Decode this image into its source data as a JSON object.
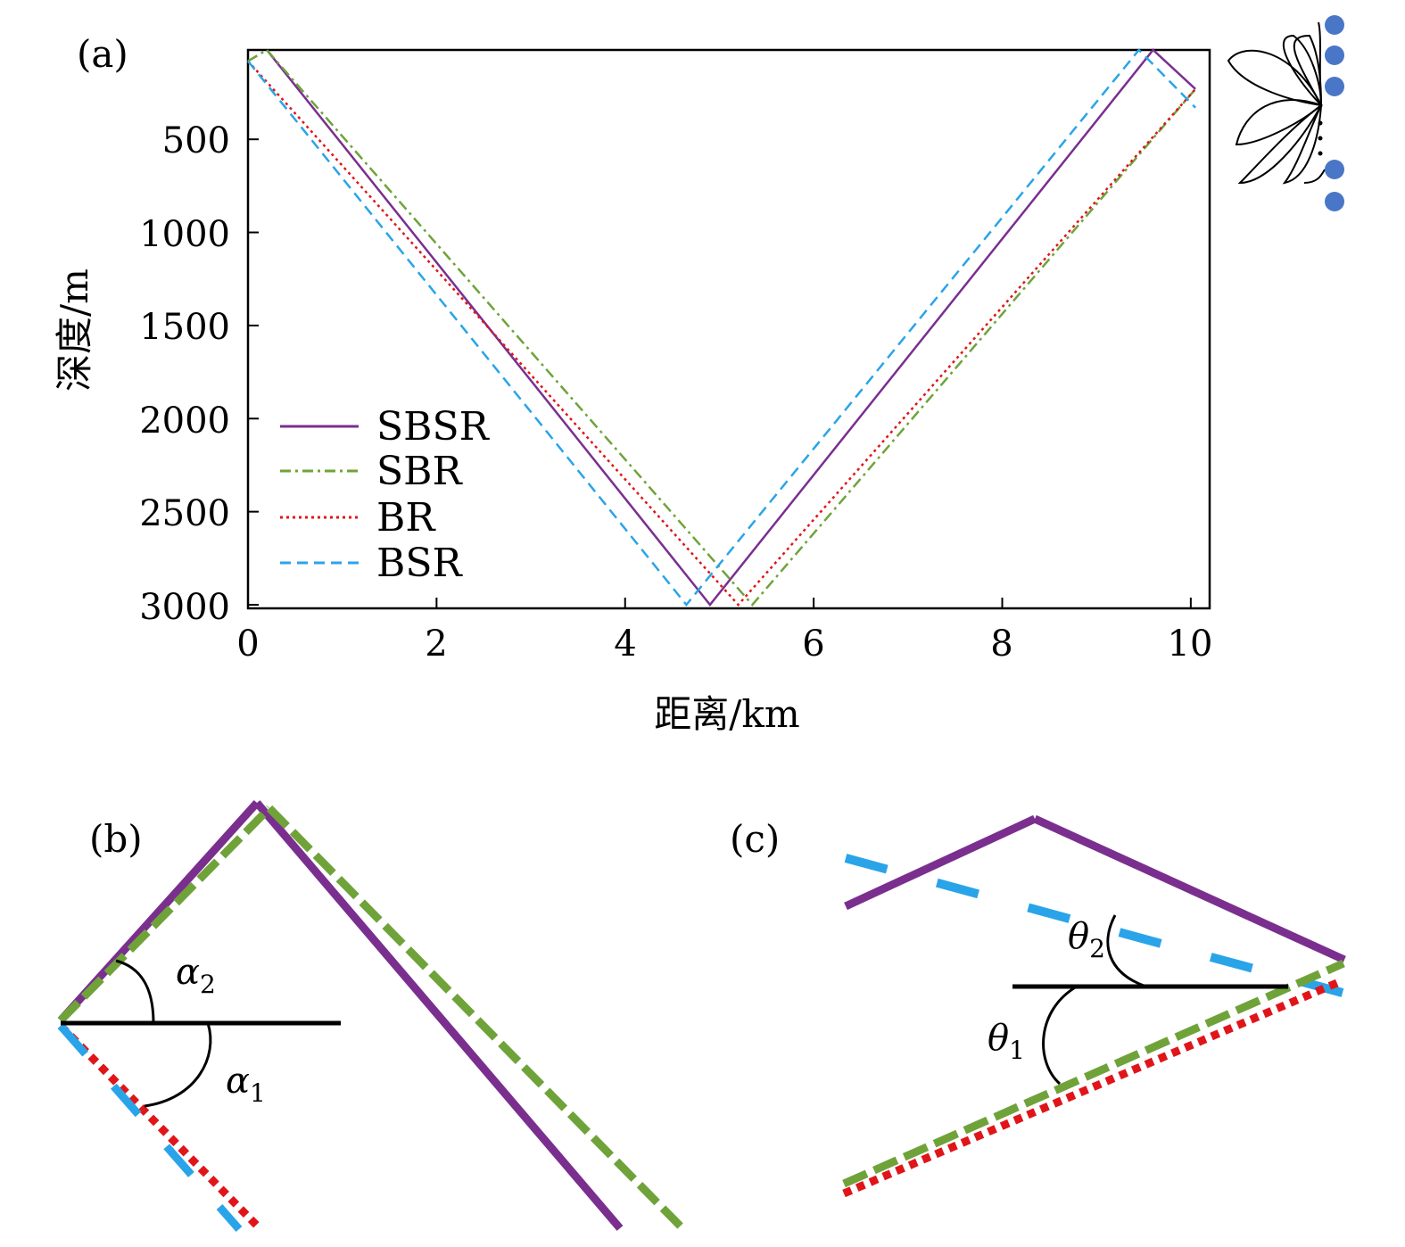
{
  "colors": {
    "SBSR": "#7a2f8f",
    "SBR": "#6fa33a",
    "BR": "#e0151a",
    "BSR": "#2aa4e8",
    "receiver": "#4a76c8"
  },
  "chart_data": [
    {
      "panel": "(a)",
      "type": "line",
      "xlabel": "距离/km",
      "ylabel": "深度/m",
      "xlim": [
        0,
        10.2
      ],
      "ylim": [
        3000,
        20
      ],
      "y_inverted": true,
      "x_ticks": [
        "0",
        "2",
        "4",
        "6",
        "8",
        "10"
      ],
      "y_ticks": [
        "500",
        "1000",
        "1500",
        "2000",
        "2500",
        "3000"
      ],
      "legend_position": "lower-left",
      "series": [
        {
          "name": "SBSR",
          "style": "solid",
          "x": [
            0.2,
            4.9,
            9.6,
            10.05
          ],
          "y": [
            20,
            3000,
            20,
            230
          ]
        },
        {
          "name": "SBR",
          "style": "dashdot",
          "x": [
            0.0,
            0.2,
            5.35,
            10.05
          ],
          "y": [
            80,
            20,
            3000,
            230
          ]
        },
        {
          "name": "BR",
          "style": "dotted",
          "x": [
            0.0,
            5.2,
            10.05
          ],
          "y": [
            80,
            3000,
            230
          ]
        },
        {
          "name": "BSR",
          "style": "dashed",
          "x": [
            0.0,
            4.65,
            9.45,
            10.05
          ],
          "y": [
            80,
            3000,
            20,
            330
          ]
        }
      ]
    },
    {
      "panel": "(b)",
      "type": "diagram",
      "angle_labels": [
        "α",
        "2",
        "α",
        "1"
      ]
    },
    {
      "panel": "(c)",
      "type": "diagram",
      "angle_labels": [
        "θ",
        "2",
        "θ",
        "1"
      ]
    }
  ]
}
